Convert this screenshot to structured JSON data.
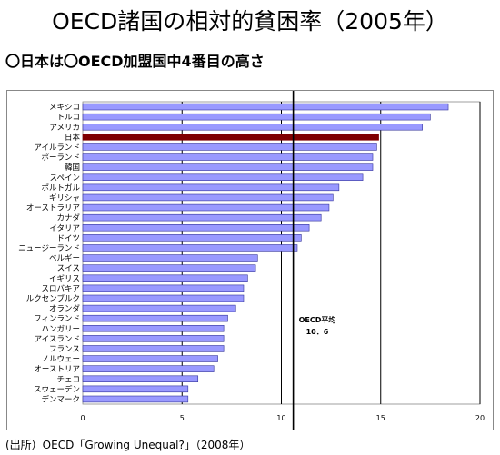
{
  "title": "OECD諸国の相対的貧困率（2005年）",
  "subtitle": "〇日本は〇OECD加盟国中4番目の高さ",
  "source": "(出所）OECD「Growing Unequal?」（2008年）",
  "colors": {
    "bar": "#9999ff",
    "bar_border": "#333399",
    "highlight": "#800000",
    "plot_bg": "#ffffff"
  },
  "chart_data": {
    "type": "bar",
    "orientation": "horizontal",
    "categories": [
      "メキシコ",
      "トルコ",
      "アメリカ",
      "日本",
      "アイルランド",
      "ポーランド",
      "韓国",
      "スペイン",
      "ポルトガル",
      "ギリシャ",
      "オーストラリア",
      "カナダ",
      "イタリア",
      "ドイツ",
      "ニュージーランド",
      "ベルギー",
      "スイス",
      "イギリス",
      "スロバキア",
      "ルクセンブルク",
      "オランダ",
      "フィンランド",
      "ハンガリー",
      "アイスランド",
      "フランス",
      "ノルウェー",
      "オーストリア",
      "チェコ",
      "スウェーデン",
      "デンマーク"
    ],
    "values": [
      18.4,
      17.5,
      17.1,
      14.9,
      14.8,
      14.6,
      14.6,
      14.1,
      12.9,
      12.6,
      12.4,
      12.0,
      11.4,
      11.0,
      10.8,
      8.8,
      8.7,
      8.3,
      8.1,
      8.1,
      7.7,
      7.3,
      7.1,
      7.1,
      7.1,
      6.8,
      6.6,
      5.8,
      5.3,
      5.3
    ],
    "highlight_category": "日本",
    "xlim": [
      0,
      20
    ],
    "xticks": [
      "0",
      "5",
      "10",
      "15",
      "20"
    ],
    "grid": "vertical",
    "reference_line": {
      "value": 10.6,
      "label_line1": "OECD平均",
      "label_line2": "10．6"
    }
  }
}
